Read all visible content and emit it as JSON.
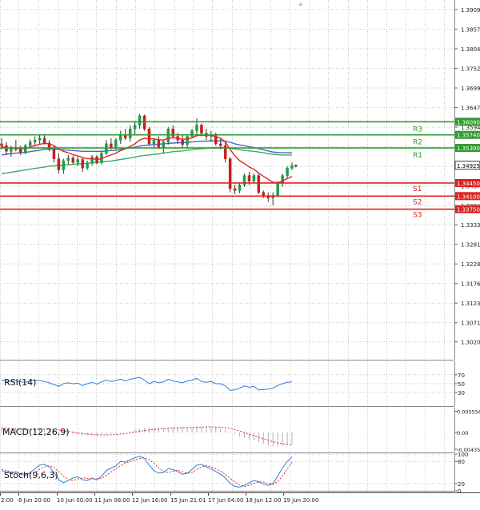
{
  "chart_data": {
    "type": "candlestick",
    "instrument_panel": {
      "price_ticks": [
        "1.39095",
        "1.38570",
        "1.38045",
        "1.37520",
        "1.36995",
        "1.36470",
        "1.35945",
        "1.35420",
        "1.34895",
        "1.34370",
        "1.33845",
        "1.33335",
        "1.32810",
        "1.32285",
        "1.31760",
        "1.31235",
        "1.30710",
        "1.30200"
      ],
      "price_tick_values": [
        1.39095,
        1.3857,
        1.38045,
        1.3752,
        1.36995,
        1.3647,
        1.35945,
        1.3542,
        1.34895,
        1.3437,
        1.33845,
        1.33335,
        1.3281,
        1.32285,
        1.3176,
        1.31235,
        1.3071,
        1.302
      ],
      "ylim": [
        1.2972,
        1.3935
      ],
      "time_ticks": [
        "2:00",
        "6 Jun 20:00",
        "10 Jun 00:00",
        "11 Jun 08:00",
        "12 Jun 16:00",
        "15 Jun 21:01",
        "17 Jun 04:00",
        "18 Jun 12:00",
        "19 Jun 20:00"
      ],
      "current_price": "1.34925",
      "levels": [
        {
          "name": "R3",
          "value": 1.3609,
          "label": "1.36090",
          "color": "#2e9c2e"
        },
        {
          "name": "R2",
          "value": 1.3574,
          "label": "1.35740",
          "color": "#2e9c2e"
        },
        {
          "name": "R1",
          "value": 1.3539,
          "label": "1.35390",
          "color": "#2e9c2e"
        },
        {
          "name": "S1",
          "value": 1.3445,
          "label": "1.34450",
          "color": "#dd2222"
        },
        {
          "name": "S2",
          "value": 1.341,
          "label": "1.34100",
          "color": "#dd2222"
        },
        {
          "name": "S3",
          "value": 1.3375,
          "label": "1.33750",
          "color": "#dd2222"
        }
      ],
      "candles": [
        [
          1.355,
          1.3565,
          1.3535,
          1.3545
        ],
        [
          1.3545,
          1.3555,
          1.352,
          1.353
        ],
        [
          1.353,
          1.3545,
          1.3515,
          1.354
        ],
        [
          1.354,
          1.356,
          1.353,
          1.3535
        ],
        [
          1.3535,
          1.3545,
          1.352,
          1.3528
        ],
        [
          1.3528,
          1.355,
          1.3522,
          1.3545
        ],
        [
          1.3545,
          1.3562,
          1.354,
          1.3555
        ],
        [
          1.3555,
          1.357,
          1.3545,
          1.356
        ],
        [
          1.356,
          1.3575,
          1.355,
          1.3565
        ],
        [
          1.3565,
          1.3575,
          1.3548,
          1.3552
        ],
        [
          1.3552,
          1.356,
          1.353,
          1.3535
        ],
        [
          1.3535,
          1.3545,
          1.35,
          1.351
        ],
        [
          1.351,
          1.3525,
          1.347,
          1.348
        ],
        [
          1.348,
          1.351,
          1.347,
          1.3505
        ],
        [
          1.3505,
          1.352,
          1.3495,
          1.3512
        ],
        [
          1.3512,
          1.3518,
          1.3495,
          1.35
        ],
        [
          1.35,
          1.3515,
          1.349,
          1.3508
        ],
        [
          1.3508,
          1.3512,
          1.3475,
          1.3485
        ],
        [
          1.3485,
          1.3505,
          1.348,
          1.3498
        ],
        [
          1.3498,
          1.352,
          1.3492,
          1.3515
        ],
        [
          1.3515,
          1.352,
          1.3495,
          1.35
        ],
        [
          1.35,
          1.353,
          1.3495,
          1.3525
        ],
        [
          1.3525,
          1.356,
          1.352,
          1.355
        ],
        [
          1.355,
          1.3565,
          1.3535,
          1.354
        ],
        [
          1.354,
          1.3565,
          1.3535,
          1.356
        ],
        [
          1.356,
          1.3585,
          1.355,
          1.3575
        ],
        [
          1.3575,
          1.359,
          1.356,
          1.3565
        ],
        [
          1.3565,
          1.36,
          1.3555,
          1.359
        ],
        [
          1.359,
          1.361,
          1.3575,
          1.36
        ],
        [
          1.36,
          1.363,
          1.359,
          1.3625
        ],
        [
          1.3625,
          1.3628,
          1.3585,
          1.359
        ],
        [
          1.359,
          1.3595,
          1.3545,
          1.355
        ],
        [
          1.355,
          1.3565,
          1.354,
          1.356
        ],
        [
          1.356,
          1.357,
          1.3535,
          1.354
        ],
        [
          1.354,
          1.356,
          1.3525,
          1.3555
        ],
        [
          1.3555,
          1.3595,
          1.3548,
          1.359
        ],
        [
          1.359,
          1.36,
          1.3565,
          1.357
        ],
        [
          1.357,
          1.358,
          1.355,
          1.356
        ],
        [
          1.356,
          1.3575,
          1.354,
          1.3548
        ],
        [
          1.3548,
          1.3575,
          1.354,
          1.357
        ],
        [
          1.357,
          1.359,
          1.3565,
          1.3585
        ],
        [
          1.3585,
          1.3618,
          1.357,
          1.36
        ],
        [
          1.36,
          1.3605,
          1.357,
          1.3578
        ],
        [
          1.3578,
          1.359,
          1.356,
          1.357
        ],
        [
          1.357,
          1.3585,
          1.3555,
          1.3575
        ],
        [
          1.3575,
          1.358,
          1.3545,
          1.355
        ],
        [
          1.355,
          1.3565,
          1.3535,
          1.3545
        ],
        [
          1.3545,
          1.3555,
          1.35,
          1.351
        ],
        [
          1.351,
          1.3515,
          1.342,
          1.343
        ],
        [
          1.343,
          1.344,
          1.3415,
          1.3425
        ],
        [
          1.3425,
          1.3445,
          1.3418,
          1.344
        ],
        [
          1.344,
          1.347,
          1.3435,
          1.3465
        ],
        [
          1.3465,
          1.3475,
          1.344,
          1.345
        ],
        [
          1.345,
          1.347,
          1.3445,
          1.3465
        ],
        [
          1.3465,
          1.347,
          1.3415,
          1.342
        ],
        [
          1.342,
          1.3425,
          1.3405,
          1.341
        ],
        [
          1.341,
          1.342,
          1.3395,
          1.3405
        ],
        [
          1.3405,
          1.342,
          1.3385,
          1.3412
        ],
        [
          1.3412,
          1.345,
          1.3408,
          1.3445
        ],
        [
          1.3445,
          1.347,
          1.3435,
          1.3465
        ],
        [
          1.3465,
          1.349,
          1.3458,
          1.3485
        ],
        [
          1.3485,
          1.35,
          1.348,
          1.3492
        ]
      ],
      "ma_red": [
        1.3542,
        1.354,
        1.3538,
        1.3538,
        1.3537,
        1.3538,
        1.3541,
        1.3545,
        1.3549,
        1.3551,
        1.355,
        1.3545,
        1.3536,
        1.353,
        1.3526,
        1.3521,
        1.3518,
        1.3513,
        1.351,
        1.351,
        1.3508,
        1.351,
        1.3516,
        1.352,
        1.3525,
        1.3532,
        1.3537,
        1.3543,
        1.355,
        1.356,
        1.3565,
        1.3563,
        1.3563,
        1.3561,
        1.356,
        1.3565,
        1.3566,
        1.3565,
        1.3562,
        1.3563,
        1.3566,
        1.3572,
        1.3573,
        1.3573,
        1.3573,
        1.3569,
        1.3565,
        1.3555,
        1.3535,
        1.3518,
        1.3505,
        1.3497,
        1.3488,
        1.3482,
        1.3472,
        1.3463,
        1.3455,
        1.3447,
        1.3446,
        1.345,
        1.3457,
        1.3463
      ],
      "ma_blue": [
        1.352,
        1.3522,
        1.3524,
        1.3525,
        1.3526,
        1.3527,
        1.3529,
        1.3531,
        1.3533,
        1.3535,
        1.3536,
        1.3536,
        1.3535,
        1.3534,
        1.3533,
        1.3532,
        1.3531,
        1.353,
        1.353,
        1.353,
        1.353,
        1.353,
        1.3531,
        1.3532,
        1.3533,
        1.3535,
        1.3537,
        1.3539,
        1.3541,
        1.3544,
        1.3546,
        1.3547,
        1.3548,
        1.3549,
        1.355,
        1.3551,
        1.3552,
        1.3553,
        1.3553,
        1.3554,
        1.3555,
        1.3556,
        1.3557,
        1.3557,
        1.3558,
        1.3558,
        1.3558,
        1.3557,
        1.3554,
        1.355,
        1.3547,
        1.3545,
        1.3542,
        1.354,
        1.3537,
        1.3534,
        1.3531,
        1.3528,
        1.3527,
        1.3526,
        1.3526,
        1.3526
      ],
      "ma_green": [
        1.347,
        1.3472,
        1.3474,
        1.3476,
        1.3478,
        1.348,
        1.3482,
        1.3484,
        1.3486,
        1.3488,
        1.349,
        1.3491,
        1.3492,
        1.3493,
        1.3494,
        1.3495,
        1.3496,
        1.3497,
        1.3498,
        1.3499,
        1.35,
        1.3501,
        1.3503,
        1.3504,
        1.3506,
        1.3508,
        1.351,
        1.3512,
        1.3514,
        1.3517,
        1.3519,
        1.352,
        1.3522,
        1.3523,
        1.3525,
        1.3527,
        1.3529,
        1.353,
        1.3531,
        1.3533,
        1.3534,
        1.3536,
        1.3537,
        1.3538,
        1.3539,
        1.354,
        1.354,
        1.354,
        1.3538,
        1.3536,
        1.3534,
        1.3533,
        1.3531,
        1.353,
        1.3528,
        1.3526,
        1.3524,
        1.3522,
        1.3521,
        1.352,
        1.352,
        1.352
      ]
    },
    "rsi": {
      "label": "RSI(14)",
      "ticks": [
        "70",
        "50",
        "30"
      ],
      "tick_values": [
        70,
        50,
        30
      ],
      "ylim": [
        0,
        100
      ],
      "values": [
        58,
        56,
        55,
        57,
        54,
        53,
        56,
        58,
        57,
        55,
        52,
        48,
        44,
        50,
        52,
        50,
        51,
        46,
        50,
        53,
        49,
        54,
        58,
        55,
        57,
        60,
        56,
        60,
        62,
        64,
        58,
        50,
        55,
        52,
        54,
        60,
        56,
        54,
        52,
        56,
        58,
        62,
        55,
        53,
        55,
        50,
        50,
        45,
        35,
        36,
        40,
        45,
        42,
        44,
        36,
        37,
        38,
        40,
        46,
        50,
        53,
        54
      ]
    },
    "macd": {
      "label": "MACD(12,26,9)",
      "ticks": [
        "0.005556",
        "0.00",
        "-0.004355"
      ],
      "tick_values": [
        0.005556,
        0,
        -0.004355
      ],
      "ylim": [
        -0.0052,
        0.0065
      ],
      "histogram": [
        0.001,
        0.0009,
        0.0008,
        0.0008,
        0.0007,
        0.0007,
        0.0008,
        0.0009,
        0.001,
        0.001,
        0.0009,
        0.0006,
        0.0002,
        -0.0001,
        -0.0002,
        -0.0004,
        -0.0005,
        -0.0007,
        -0.0007,
        -0.0007,
        -0.0008,
        -0.0007,
        -0.0005,
        -0.0004,
        -0.0003,
        -0.0001,
        0.0001,
        0.0003,
        0.0006,
        0.001,
        0.0012,
        0.0012,
        0.0013,
        0.0013,
        0.0013,
        0.0014,
        0.0015,
        0.0015,
        0.0014,
        0.0014,
        0.0015,
        0.0016,
        0.0016,
        0.0016,
        0.0015,
        0.0014,
        0.0012,
        0.0009,
        0.0002,
        -0.0005,
        -0.001,
        -0.0014,
        -0.0018,
        -0.0021,
        -0.0026,
        -0.003,
        -0.0034,
        -0.0036,
        -0.0036,
        -0.0035,
        -0.0033,
        -0.0031
      ],
      "signal": [
        0.0012,
        0.0011,
        0.001,
        0.0009,
        0.0009,
        0.0008,
        0.0008,
        0.0008,
        0.0009,
        0.0009,
        0.0009,
        0.0008,
        0.0007,
        0.0005,
        0.0003,
        0.0001,
        -0.0001,
        -0.0003,
        -0.0004,
        -0.0005,
        -0.0006,
        -0.0006,
        -0.0006,
        -0.0006,
        -0.0005,
        -0.0004,
        -0.0003,
        -0.0001,
        0.0001,
        0.0003,
        0.0005,
        0.0007,
        0.0008,
        0.0009,
        0.001,
        0.0011,
        0.0012,
        0.0012,
        0.0013,
        0.0013,
        0.0013,
        0.0014,
        0.0014,
        0.0015,
        0.0015,
        0.0014,
        0.0014,
        0.0013,
        0.0011,
        0.0008,
        0.0004,
        0.0,
        -0.0004,
        -0.0008,
        -0.0012,
        -0.0016,
        -0.002,
        -0.0024,
        -0.0027,
        -0.0029,
        -0.0031,
        -0.0032
      ]
    },
    "stoch": {
      "label": "Stoch(9,6,3)",
      "ticks": [
        "100",
        "80",
        "20",
        "0"
      ],
      "tick_values": [
        100,
        80,
        20,
        0
      ],
      "ylim": [
        0,
        100
      ],
      "k": [
        55,
        50,
        48,
        52,
        45,
        42,
        50,
        60,
        70,
        72,
        65,
        50,
        30,
        22,
        28,
        35,
        38,
        30,
        28,
        35,
        30,
        40,
        55,
        62,
        68,
        80,
        78,
        85,
        90,
        94,
        88,
        70,
        55,
        48,
        50,
        60,
        58,
        52,
        45,
        48,
        58,
        70,
        72,
        65,
        60,
        52,
        45,
        35,
        20,
        12,
        10,
        15,
        22,
        28,
        25,
        18,
        15,
        20,
        40,
        62,
        80,
        92
      ],
      "d": [
        58,
        55,
        52,
        50,
        48,
        46,
        46,
        50,
        58,
        65,
        68,
        63,
        52,
        40,
        30,
        28,
        32,
        35,
        34,
        32,
        32,
        34,
        42,
        52,
        60,
        68,
        75,
        80,
        84,
        88,
        90,
        85,
        75,
        62,
        52,
        50,
        53,
        56,
        52,
        48,
        50,
        58,
        65,
        68,
        65,
        60,
        53,
        45,
        34,
        24,
        16,
        12,
        15,
        20,
        24,
        24,
        20,
        18,
        25,
        40,
        60,
        78
      ]
    }
  }
}
